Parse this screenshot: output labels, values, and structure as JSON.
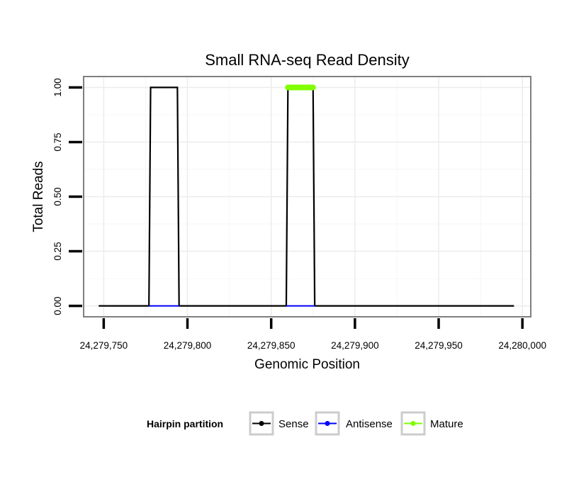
{
  "chart_data": {
    "type": "line",
    "title": "Small RNA-seq Read Density",
    "xlabel": "Genomic Position",
    "ylabel": "Total Reads",
    "xlim": [
      24279738,
      24280005
    ],
    "ylim": [
      -0.05,
      1.05
    ],
    "x_ticks": [
      24279750,
      24279800,
      24279850,
      24279900,
      24279950,
      24280000
    ],
    "x_tick_labels": [
      "24,279,750",
      "24,279,800",
      "24,279,850",
      "24,279,900",
      "24,279,950",
      "24,280,000"
    ],
    "y_ticks": [
      0,
      0.25,
      0.5,
      0.75,
      1.0
    ],
    "y_tick_labels": [
      "0.00",
      "0.25",
      "0.50",
      "0.75",
      "1.00"
    ],
    "grid": true,
    "legend": {
      "title": "Hairpin partition",
      "position": "bottom",
      "entries": [
        {
          "label": "Sense",
          "color": "#000000"
        },
        {
          "label": "Antisense",
          "color": "#0000ff"
        },
        {
          "label": "Mature",
          "color": "#7fff00"
        }
      ]
    },
    "series": [
      {
        "name": "Sense",
        "color": "#000000",
        "points": [
          [
            24279747,
            0
          ],
          [
            24279777,
            0
          ],
          [
            24279778,
            1
          ],
          [
            24279794,
            1
          ],
          [
            24279795,
            0
          ],
          [
            24279859,
            0
          ],
          [
            24279860,
            1
          ],
          [
            24279875,
            1
          ],
          [
            24279876,
            0
          ],
          [
            24279995,
            0
          ]
        ]
      },
      {
        "name": "Antisense",
        "color": "#0000ff",
        "points": [
          [
            24279777,
            0
          ],
          [
            24279795,
            0
          ],
          [
            24279859,
            0
          ],
          [
            24279876,
            0
          ]
        ],
        "segments": [
          [
            0,
            1
          ],
          [
            2,
            3
          ]
        ]
      },
      {
        "name": "Mature",
        "color": "#7fff00",
        "points": [
          [
            24279860,
            1
          ],
          [
            24279875,
            1
          ]
        ]
      }
    ]
  }
}
